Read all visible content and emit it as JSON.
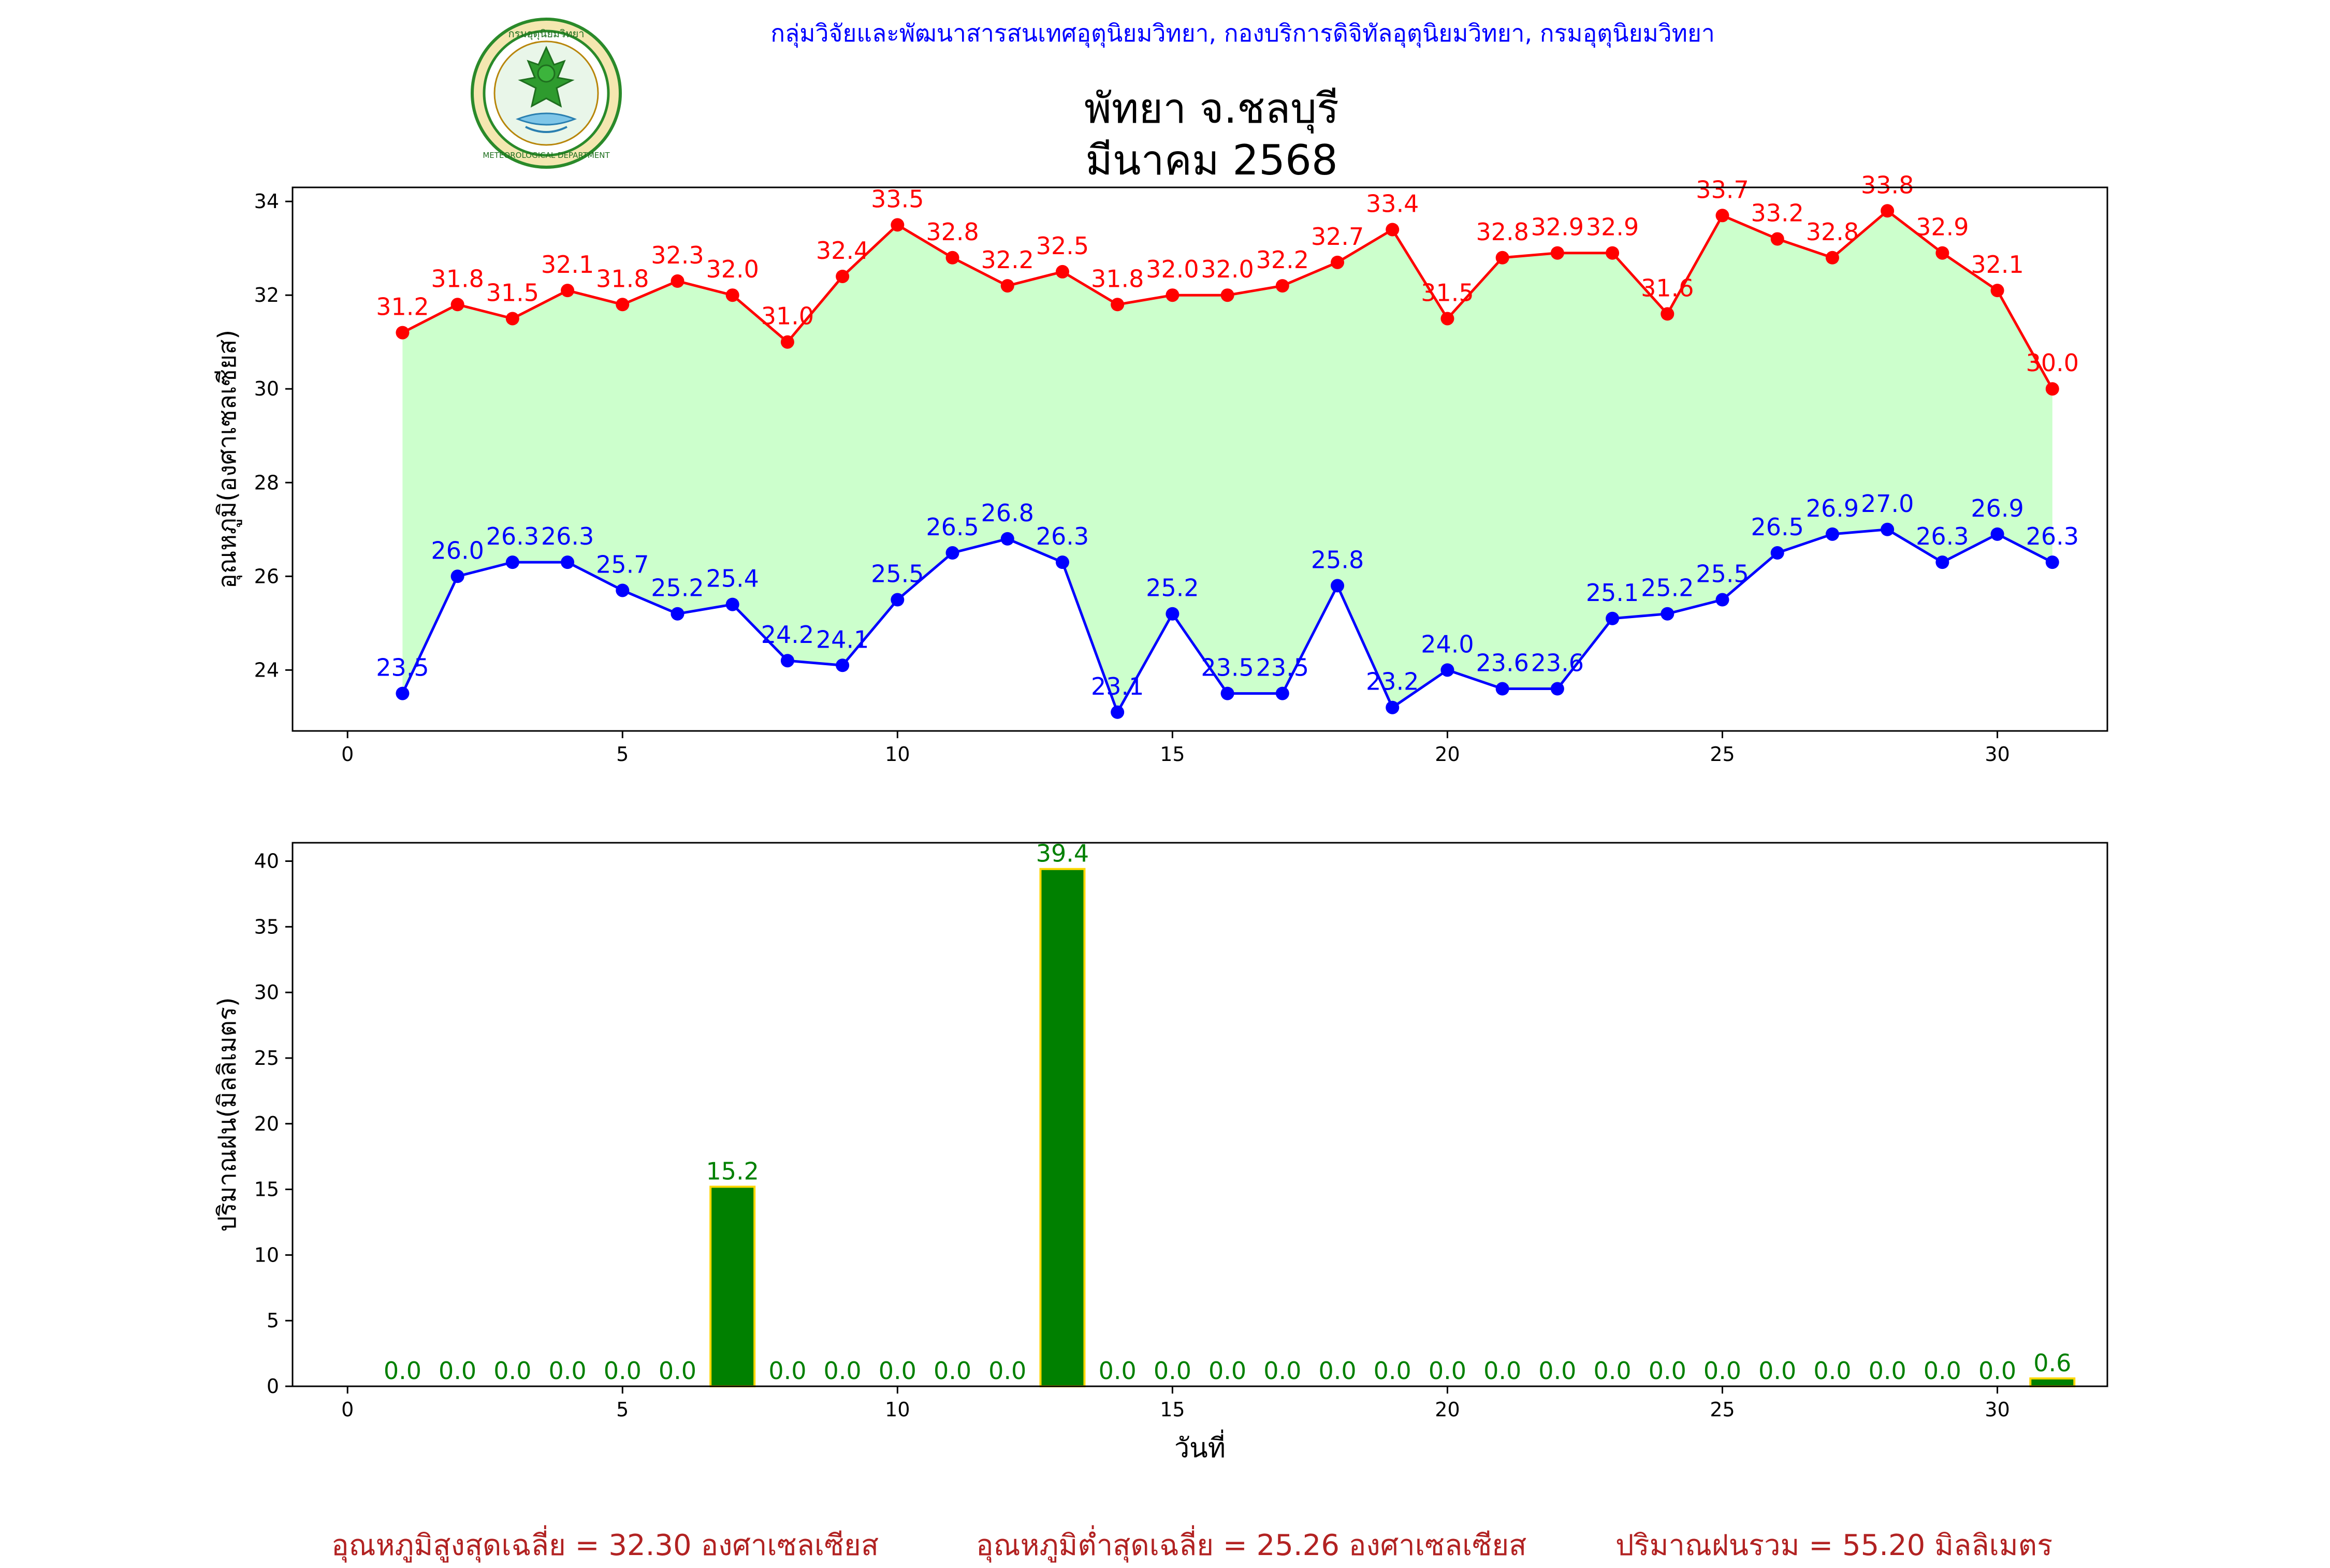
{
  "header": {
    "org_line": "กลุ่มวิจัยและพัฒนาสารสนเทศอุตุนิยมวิทยา, กองบริการดิจิทัลอุตุนิยมวิทยา, กรมอุตุนิยมวิทยา",
    "title_line1": "พัทยา จ.ชลบุรี",
    "title_line2": "มีนาคม 2568",
    "logo_icon": "meteorological-department-seal-icon",
    "logo_text_top": "กรมอุตุนิยมวิทยา",
    "logo_text_bottom": "METEOROLOGICAL DEPARTMENT"
  },
  "colors": {
    "max_line": "#ff0000",
    "min_line": "#0000ff",
    "fill_between": "#ccffcc",
    "rain_bar": "#008000",
    "rain_bar_edge": "#ffd700",
    "rain_label": "#008000",
    "summary_text": "#b22222",
    "header_text": "#0000ff"
  },
  "chart_data": [
    {
      "type": "line",
      "title": "",
      "xlabel": "",
      "ylabel": "อุณหภูมิ(องศาเซลเซียส)",
      "xlim": [
        -1,
        32
      ],
      "ylim": [
        22.7,
        34.3
      ],
      "xticks": [
        0,
        5,
        10,
        15,
        20,
        25,
        30
      ],
      "yticks": [
        24,
        26,
        28,
        30,
        32,
        34
      ],
      "grid": false,
      "x": [
        1,
        2,
        3,
        4,
        5,
        6,
        7,
        8,
        9,
        10,
        11,
        12,
        13,
        14,
        15,
        16,
        17,
        18,
        19,
        20,
        21,
        22,
        23,
        24,
        25,
        26,
        27,
        28,
        29,
        30,
        31
      ],
      "series": [
        {
          "values": [
            31.2,
            31.8,
            31.5,
            32.1,
            31.8,
            32.3,
            32.0,
            31.0,
            32.4,
            33.5,
            32.8,
            32.2,
            32.5,
            31.8,
            32.0,
            32.0,
            32.2,
            32.7,
            33.4,
            31.5,
            32.8,
            32.9,
            32.9,
            31.6,
            33.7,
            33.2,
            32.8,
            33.8,
            32.9,
            32.1,
            30.0
          ],
          "labels": [
            "31.2",
            "31.8",
            "31.5",
            "32.1",
            "31.8",
            "32.3",
            "32.0",
            "31.0",
            "32.4",
            "33.5",
            "32.8",
            "32.2",
            "32.5",
            "31.8",
            "32.0",
            "32.0",
            "32.2",
            "32.7",
            "33.4",
            "31.5",
            "32.8",
            "32.9",
            "32.9",
            "31.6",
            "33.7",
            "33.2",
            "32.8",
            "33.8",
            "32.9",
            "32.1",
            "30.0"
          ]
        },
        {
          "values": [
            23.5,
            26.0,
            26.3,
            26.3,
            25.7,
            25.2,
            25.4,
            24.2,
            24.1,
            25.5,
            26.5,
            26.8,
            26.3,
            23.1,
            25.2,
            23.5,
            23.5,
            25.8,
            23.2,
            24.0,
            23.6,
            23.6,
            25.1,
            25.2,
            25.5,
            26.5,
            26.9,
            27.0,
            26.3,
            26.9,
            26.3
          ],
          "labels": [
            "23.5",
            "26.0",
            "26.3",
            "26.3",
            "25.7",
            "25.2",
            "25.4",
            "24.2",
            "24.1",
            "25.5",
            "26.5",
            "26.8",
            "26.3",
            "23.1",
            "25.2",
            "23.5",
            "23.5",
            "25.8",
            "23.2",
            "24.0",
            "23.6",
            "23.6",
            "25.1",
            "25.2",
            "25.5",
            "26.5",
            "26.9",
            "27.0",
            "26.3",
            "26.9",
            "26.3"
          ]
        }
      ]
    },
    {
      "type": "bar",
      "title": "",
      "xlabel": "วันที่",
      "ylabel": "ปริมาณฝน(มิลลิเมตร)",
      "xlim": [
        -1,
        32
      ],
      "ylim": [
        0,
        41.4
      ],
      "xticks": [
        0,
        5,
        10,
        15,
        20,
        25,
        30
      ],
      "yticks": [
        0,
        5,
        10,
        15,
        20,
        25,
        30,
        35,
        40
      ],
      "grid": false,
      "x": [
        1,
        2,
        3,
        4,
        5,
        6,
        7,
        8,
        9,
        10,
        11,
        12,
        13,
        14,
        15,
        16,
        17,
        18,
        19,
        20,
        21,
        22,
        23,
        24,
        25,
        26,
        27,
        28,
        29,
        30,
        31
      ],
      "values": [
        0,
        0,
        0,
        0,
        0,
        0,
        15.2,
        0,
        0,
        0,
        0,
        0,
        39.4,
        0,
        0,
        0,
        0,
        0,
        0,
        0,
        0,
        0,
        0,
        0,
        0,
        0,
        0,
        0,
        0,
        0,
        0.6
      ],
      "labels": [
        "0.0",
        "0.0",
        "0.0",
        "0.0",
        "0.0",
        "0.0",
        "15.2",
        "0.0",
        "0.0",
        "0.0",
        "0.0",
        "0.0",
        "39.4",
        "0.0",
        "0.0",
        "0.0",
        "0.0",
        "0.0",
        "0.0",
        "0.0",
        "0.0",
        "0.0",
        "0.0",
        "0.0",
        "0.0",
        "0.0",
        "0.0",
        "0.0",
        "0.0",
        "0.0",
        "0.6"
      ]
    }
  ],
  "summary": {
    "avg_max": "อุณหภูมิสูงสุดเฉลี่ย = 32.30 องศาเซลเซียส",
    "avg_min": "อุณหภูมิต่ำสุดเฉลี่ย = 25.26 องศาเซลเซียส",
    "total_rain": "ปริมาณฝนรวม = 55.20 มิลลิเมตร"
  }
}
